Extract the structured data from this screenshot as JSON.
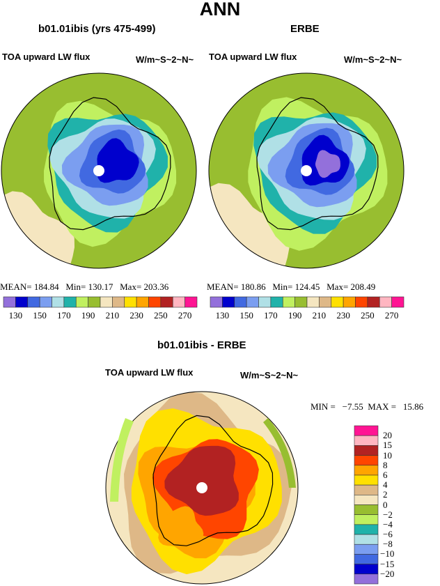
{
  "title": "ANN",
  "palette": [
    "#9370DB",
    "#0000CD",
    "#4169E1",
    "#7B9EF0",
    "#B0E0E6",
    "#20B2AA",
    "#C0F060",
    "#98BE30",
    "#F5E6C0",
    "#DEB887",
    "#FFE000",
    "#FFA500",
    "#FF4500",
    "#B22222",
    "#FFB6C1",
    "#FF1493"
  ],
  "panels": [
    {
      "title": "b01.01ibis (yrs 475-499)",
      "variable": "TOA upward LW flux",
      "units": "W/m~S~2~N~",
      "stats": "MEAN= 184.84   Min= 130.17   Max= 203.36",
      "colorbar_labels": [
        "130",
        "150",
        "170",
        "190",
        "210",
        "230",
        "250",
        "270"
      ]
    },
    {
      "title": "ERBE",
      "variable": "TOA upward LW flux",
      "units": "W/m~S~2~N~",
      "stats": "MEAN= 180.86   Min= 124.45   Max= 208.49",
      "colorbar_labels": [
        "130",
        "150",
        "170",
        "190",
        "210",
        "230",
        "250",
        "270"
      ]
    }
  ],
  "diff": {
    "title": "b01.01ibis - ERBE",
    "variable": "TOA upward LW flux",
    "units": "W/m~S~2~N~",
    "stats": "MIN =   −7.55  MAX =   15.86",
    "colorbar_labels": [
      "20",
      "15",
      "10",
      "8",
      "6",
      "4",
      "2",
      "0",
      "−2",
      "−4",
      "−6",
      "−8",
      "−10",
      "−15",
      "−20"
    ]
  }
}
